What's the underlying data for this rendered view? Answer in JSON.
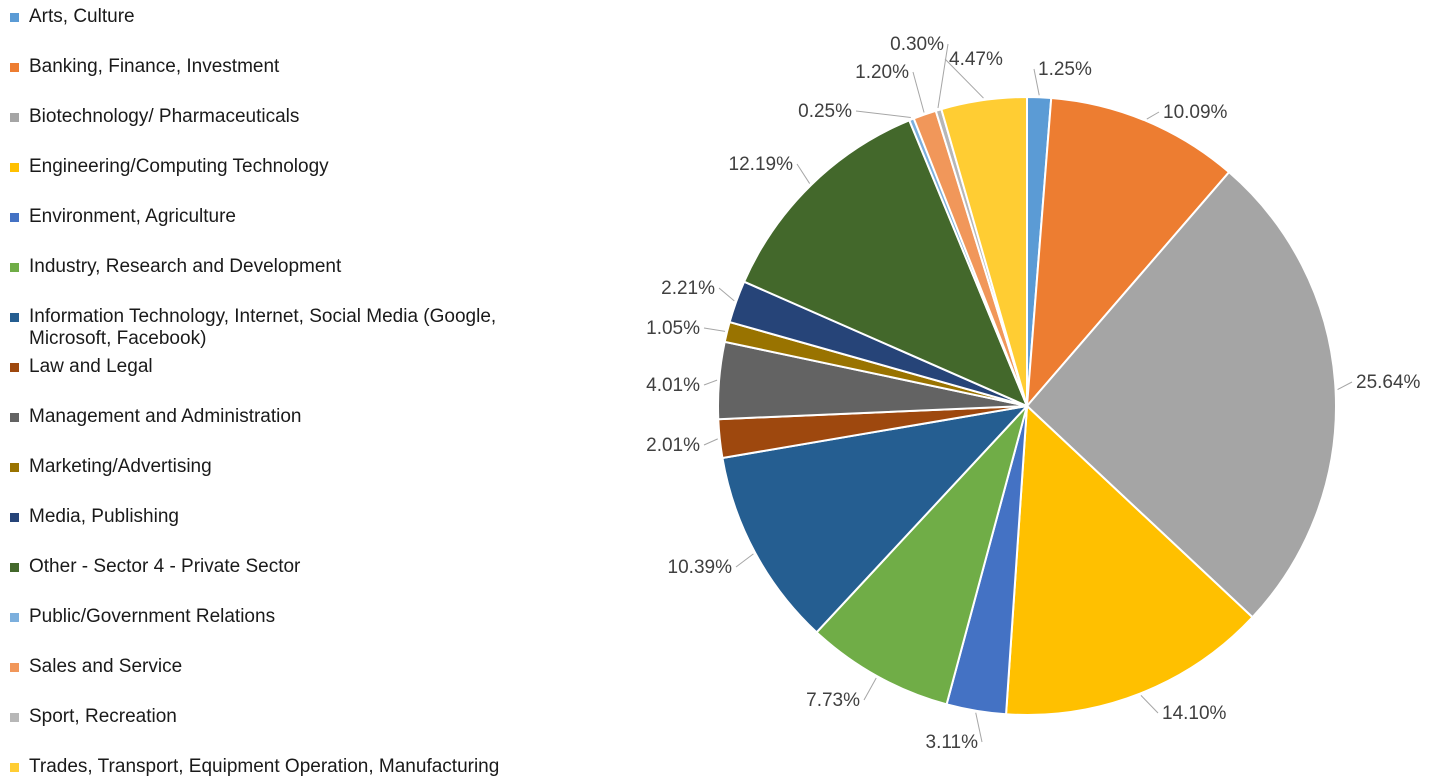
{
  "chart_data": {
    "type": "pie",
    "legend_position": "left",
    "title": "",
    "categories": [
      "Arts, Culture",
      "Banking, Finance, Investment",
      "Biotechnology/ Pharmaceuticals",
      "Engineering/Computing Technology",
      "Environment, Agriculture",
      "Industry, Research and Development",
      "Information Technology, Internet, Social Media (Google, Microsoft, Facebook)",
      "Law and Legal",
      "Management and Administration",
      "Marketing/Advertising",
      "Media, Publishing",
      "Other - Sector 4 - Private Sector",
      "Public/Government Relations",
      "Sales and Service",
      "Sport, Recreation",
      "Trades, Transport, Equipment Operation, Manufacturing"
    ],
    "values": [
      1.25,
      10.09,
      25.64,
      14.1,
      3.11,
      7.73,
      10.39,
      2.01,
      4.01,
      1.05,
      2.21,
      12.19,
      0.25,
      1.2,
      0.3,
      4.47
    ],
    "labels": [
      "1.25%",
      "10.09%",
      "25.64%",
      "14.10%",
      "3.11%",
      "7.73%",
      "10.39%",
      "2.01%",
      "4.01%",
      "1.05%",
      "2.21%",
      "12.19%",
      "0.25%",
      "1.20%",
      "0.30%",
      "4.47%"
    ],
    "colors": [
      "#5B9BD5",
      "#ED7D31",
      "#A5A5A5",
      "#FFC000",
      "#4472C4",
      "#70AD47",
      "#255E91",
      "#9E480E",
      "#636363",
      "#997300",
      "#264478",
      "#43682B",
      "#7CAFDD",
      "#F1975A",
      "#B7B7B7",
      "#FFCD33"
    ]
  }
}
